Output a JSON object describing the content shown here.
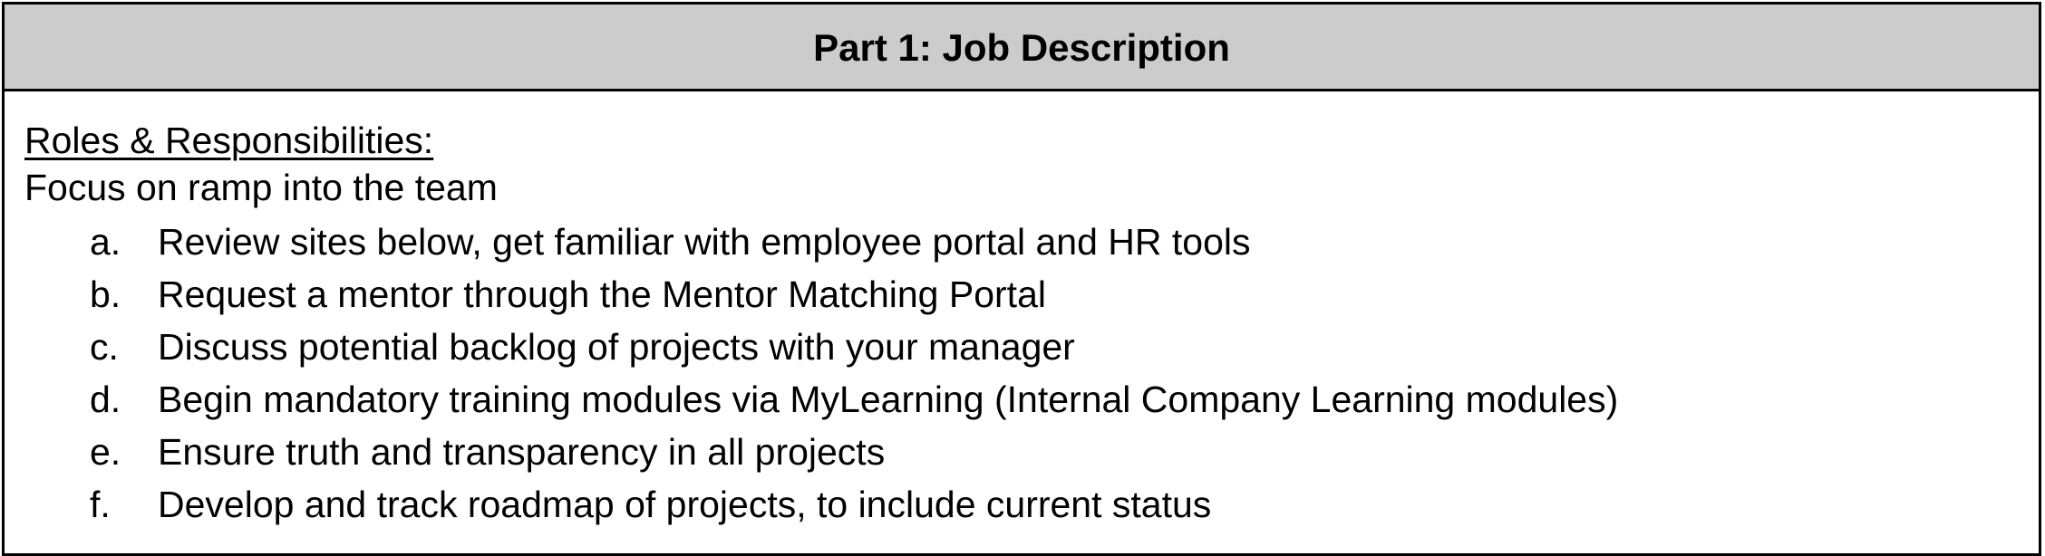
{
  "header": {
    "title": "Part 1: Job Description"
  },
  "content": {
    "section_heading": "Roles & Responsibilities:",
    "intro": "Focus on ramp into the team",
    "items": [
      {
        "marker": "a.",
        "text": "Review sites below, get familiar with employee portal and HR tools"
      },
      {
        "marker": "b.",
        "text": "Request a mentor through the Mentor Matching Portal"
      },
      {
        "marker": "c.",
        "text": "Discuss potential backlog of projects with your manager"
      },
      {
        "marker": "d.",
        "text": "Begin mandatory training modules via MyLearning (Internal Company Learning modules)"
      },
      {
        "marker": "e.",
        "text": "Ensure truth and transparency in all projects"
      },
      {
        "marker": "f.",
        "text": "Develop and track roadmap of projects, to include current status"
      }
    ]
  },
  "colors": {
    "header_background": "#cccccc",
    "border": "#000000",
    "text": "#000000"
  }
}
